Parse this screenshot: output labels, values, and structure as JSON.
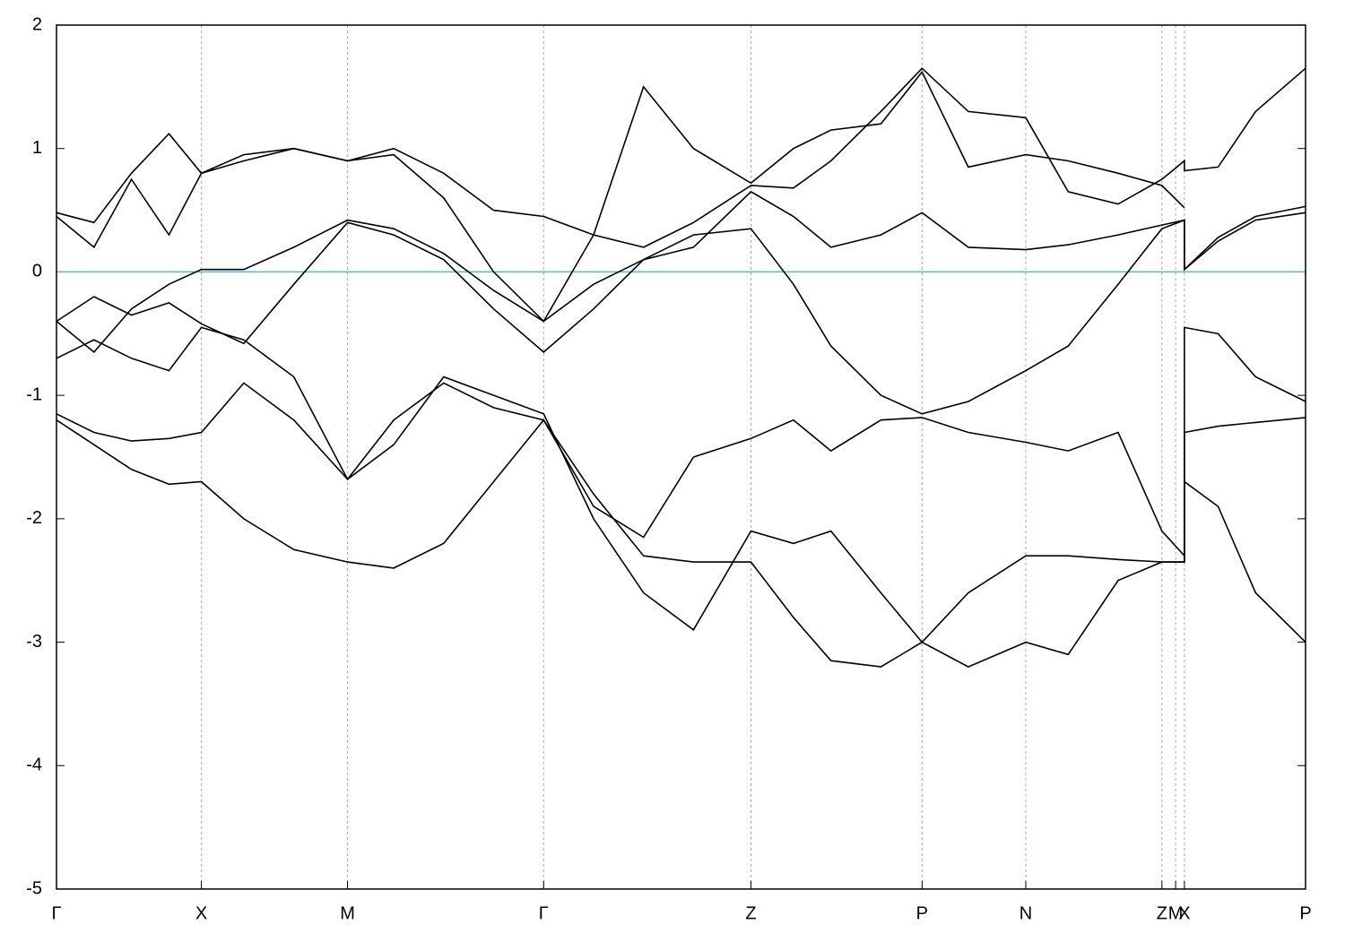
{
  "chart_data": {
    "type": "line",
    "x": [
      0,
      3,
      6,
      9,
      11.6,
      15,
      19,
      23.3,
      27,
      31,
      35,
      39,
      43,
      47,
      51,
      55.6,
      59,
      62,
      66,
      69.3,
      73,
      77.6,
      81,
      85,
      88.5,
      90.3,
      90.3,
      93,
      96,
      100
    ],
    "xlim": [
      0,
      100
    ],
    "xticks": [
      {
        "value": 0,
        "label": "Γ"
      },
      {
        "value": 11.6,
        "label": "X"
      },
      {
        "value": 23.3,
        "label": "M"
      },
      {
        "value": 39,
        "label": "Γ"
      },
      {
        "value": 55.6,
        "label": "Z"
      },
      {
        "value": 69.3,
        "label": "P"
      },
      {
        "value": 77.6,
        "label": "N"
      },
      {
        "value": 88.5,
        "label": "Z"
      },
      {
        "value": 89.6,
        "label": "M"
      },
      {
        "value": 90.3,
        "label": "X"
      },
      {
        "value": 100,
        "label": "P"
      }
    ],
    "ylim": [
      -5,
      2
    ],
    "yticks": [
      -5,
      -4,
      -3,
      -2,
      -1,
      0,
      1,
      2
    ],
    "grid": true,
    "zero_line_color": "#5ab4c8",
    "series": [
      {
        "color": "#000000",
        "values": [
          -1.2,
          -1.4,
          -1.6,
          -1.72,
          -1.7,
          -2.0,
          -2.25,
          -2.35,
          -2.4,
          -2.2,
          -1.7,
          -1.2,
          -1.8,
          -2.3,
          -2.35,
          -2.35,
          -2.8,
          -3.15,
          -3.2,
          -3.0,
          -2.6,
          -2.3,
          -2.3,
          -2.33,
          -2.35,
          -2.35,
          -1.7,
          -1.9,
          -2.6,
          -3.0
        ]
      },
      {
        "color": "#000000",
        "values": [
          -1.15,
          -1.3,
          -1.37,
          -1.35,
          -1.3,
          -0.9,
          -1.2,
          -1.68,
          -1.4,
          -0.85,
          -1.0,
          -1.15,
          -2.0,
          -2.6,
          -2.9,
          -2.1,
          -2.2,
          -2.1,
          -2.6,
          -3.0,
          -3.2,
          -3.0,
          -3.1,
          -2.5,
          -2.35,
          -2.35,
          -1.3,
          -1.25,
          -1.22,
          -1.18
        ]
      },
      {
        "color": "#000000",
        "values": [
          -0.7,
          -0.55,
          -0.7,
          -0.8,
          -0.45,
          -0.55,
          -0.85,
          -1.68,
          -1.2,
          -0.9,
          -1.1,
          -1.2,
          -1.9,
          -2.15,
          -1.5,
          -1.35,
          -1.2,
          -1.45,
          -1.2,
          -1.18,
          -1.3,
          -1.38,
          -1.45,
          -1.3,
          -2.1,
          -2.3,
          -0.45,
          -0.5,
          -0.85,
          -1.05
        ]
      },
      {
        "color": "#000000",
        "values": [
          -0.4,
          -0.2,
          -0.35,
          -0.25,
          -0.42,
          -0.58,
          -0.1,
          0.4,
          0.3,
          0.1,
          -0.3,
          -0.65,
          -0.3,
          0.1,
          0.3,
          0.35,
          -0.1,
          -0.6,
          -1.0,
          -1.15,
          -1.05,
          -0.8,
          -0.6,
          -0.1,
          0.35,
          0.42,
          0.02,
          0.25,
          0.42,
          0.48
        ]
      },
      {
        "color": "#000000",
        "values": [
          -0.4,
          -0.65,
          -0.3,
          -0.1,
          0.02,
          0.02,
          0.2,
          0.42,
          0.35,
          0.15,
          -0.15,
          -0.4,
          -0.1,
          0.1,
          0.2,
          0.65,
          0.45,
          0.2,
          0.3,
          0.48,
          0.2,
          0.18,
          0.22,
          0.3,
          0.38,
          0.42,
          0.02,
          0.28,
          0.45,
          0.53
        ]
      },
      {
        "color": "#000000",
        "values": [
          0.45,
          0.2,
          0.75,
          0.3,
          0.8,
          0.95,
          1.0,
          0.9,
          1.0,
          0.8,
          0.5,
          0.45,
          0.3,
          0.2,
          0.4,
          0.7,
          0.68,
          0.9,
          1.3,
          1.65,
          1.3,
          1.25,
          0.65,
          0.55,
          0.75,
          0.9,
          0.82,
          0.85,
          1.3,
          1.65
        ]
      },
      {
        "color": "#000000",
        "values": [
          0.48,
          0.4,
          0.8,
          1.12,
          0.8,
          0.9,
          1.0,
          0.9,
          0.95,
          0.6,
          0.0,
          -0.4,
          0.3,
          1.5,
          1.0,
          0.72,
          1.0,
          1.15,
          1.2,
          1.62,
          0.85,
          0.95,
          0.9,
          0.8,
          0.7,
          0.52,
          null,
          null,
          null,
          null
        ]
      }
    ]
  }
}
